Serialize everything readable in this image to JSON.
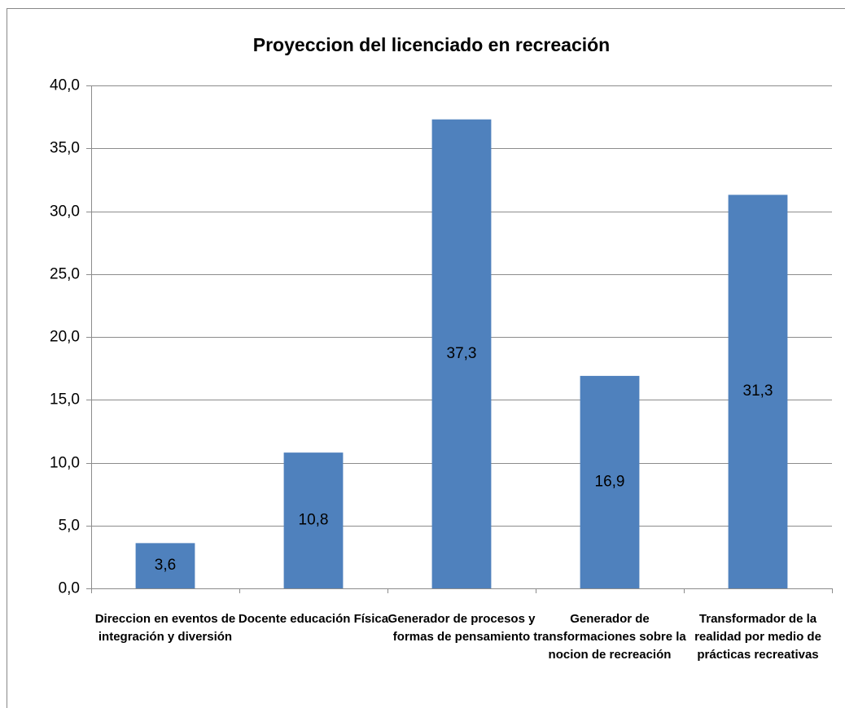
{
  "chart_data": {
    "type": "bar",
    "title": "Proyeccion del  licenciado en recreación",
    "categories": [
      "Direccion en eventos de integración y diversión",
      "Docente educación Física",
      "Generador de procesos y formas de pensamiento",
      "Generador de transformaciones sobre la nocion de recreación",
      "Transformador de la realidad por medio de prácticas recreativas"
    ],
    "values": [
      3.6,
      10.8,
      37.3,
      16.9,
      31.3
    ],
    "value_labels": [
      "3,6",
      "10,8",
      "37,3",
      "16,9",
      "31,3"
    ],
    "color": "#4f81bd",
    "ylim": [
      0,
      40
    ],
    "yticks": [
      {
        "value": 0,
        "label": "0,0"
      },
      {
        "value": 5,
        "label": "5,0"
      },
      {
        "value": 10,
        "label": "10,0"
      },
      {
        "value": 15,
        "label": "15,0"
      },
      {
        "value": 20,
        "label": "20,0"
      },
      {
        "value": 25,
        "label": "25,0"
      },
      {
        "value": 30,
        "label": "30,0"
      },
      {
        "value": 35,
        "label": "35,0"
      },
      {
        "value": 40,
        "label": "40,0"
      }
    ],
    "grid": true
  }
}
